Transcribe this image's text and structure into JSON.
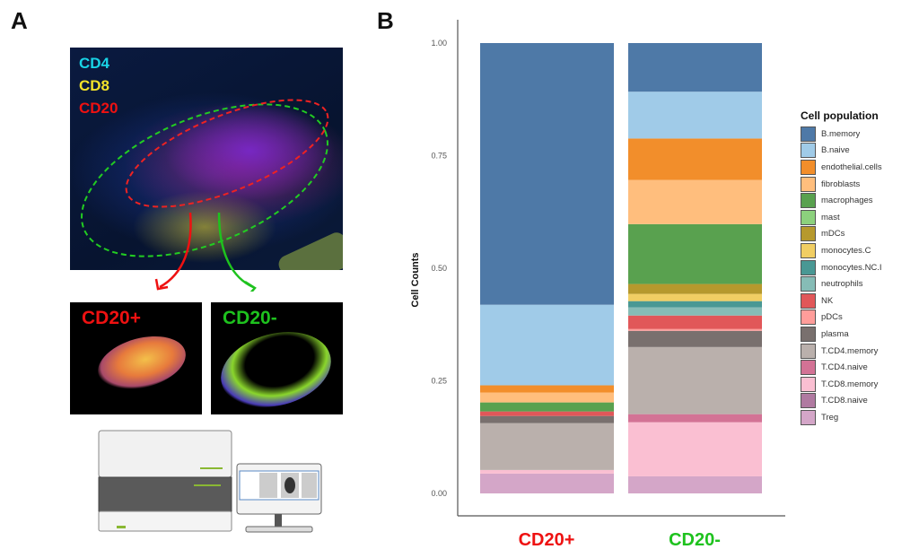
{
  "panels": {
    "a_label": "A",
    "b_label": "B"
  },
  "panel_a": {
    "markers": [
      {
        "label": "CD4",
        "color": "#19d3e6"
      },
      {
        "label": "CD8",
        "color": "#f2e22a"
      },
      {
        "label": "CD20",
        "color": "#ee1111"
      }
    ],
    "regions": [
      {
        "label": "CD20+",
        "color": "#ee1111"
      },
      {
        "label": "CD20-",
        "color": "#1ec21e"
      }
    ]
  },
  "chart_data": {
    "type": "bar",
    "stacked": true,
    "title": "",
    "xlabel": "",
    "ylabel": "Cell Counts",
    "ylim": [
      0,
      1
    ],
    "yticks": [
      "0.00",
      "0.25",
      "0.50",
      "0.75",
      "1.00"
    ],
    "categories": [
      "CD20+",
      "CD20-"
    ],
    "category_colors": [
      "#ee1111",
      "#1ec21e"
    ],
    "legend_title": "Cell population",
    "legend_position": "right",
    "series": [
      {
        "name": "B.memory",
        "color": "#4e79a7",
        "values": [
          0.581,
          0.108
        ]
      },
      {
        "name": "B.naive",
        "color": "#a0cbe8",
        "values": [
          0.179,
          0.104
        ]
      },
      {
        "name": "endothelial.cells",
        "color": "#f28e2b",
        "values": [
          0.016,
          0.092
        ]
      },
      {
        "name": "fibroblasts",
        "color": "#ffbe7d",
        "values": [
          0.022,
          0.098
        ]
      },
      {
        "name": "macrophages",
        "color": "#59a14f",
        "values": [
          0.02,
          0.133
        ]
      },
      {
        "name": "mast",
        "color": "#8cd17d",
        "values": [
          0.0,
          0.0
        ]
      },
      {
        "name": "mDCs",
        "color": "#b6992d",
        "values": [
          0.0,
          0.022
        ]
      },
      {
        "name": "monocytes.C",
        "color": "#f1ce63",
        "values": [
          0.0,
          0.016
        ]
      },
      {
        "name": "monocytes.NC.I",
        "color": "#499894",
        "values": [
          0.0,
          0.014
        ]
      },
      {
        "name": "neutrophils",
        "color": "#86bcb6",
        "values": [
          0.0,
          0.018
        ]
      },
      {
        "name": "NK",
        "color": "#e15759",
        "values": [
          0.01,
          0.03
        ]
      },
      {
        "name": "pDCs",
        "color": "#ff9d9a",
        "values": [
          0.0,
          0.004
        ]
      },
      {
        "name": "plasma",
        "color": "#79706e",
        "values": [
          0.016,
          0.036
        ]
      },
      {
        "name": "T.CD4.memory",
        "color": "#bab0ac",
        "values": [
          0.104,
          0.149
        ]
      },
      {
        "name": "T.CD4.naive",
        "color": "#d37295",
        "values": [
          0.0,
          0.018
        ]
      },
      {
        "name": "T.CD8.memory",
        "color": "#fabfd2",
        "values": [
          0.008,
          0.12
        ]
      },
      {
        "name": "T.CD8.naive",
        "color": "#b07aa1",
        "values": [
          0.0,
          0.0
        ]
      },
      {
        "name": "Treg",
        "color": "#d4a6c8",
        "values": [
          0.044,
          0.038
        ]
      }
    ]
  }
}
